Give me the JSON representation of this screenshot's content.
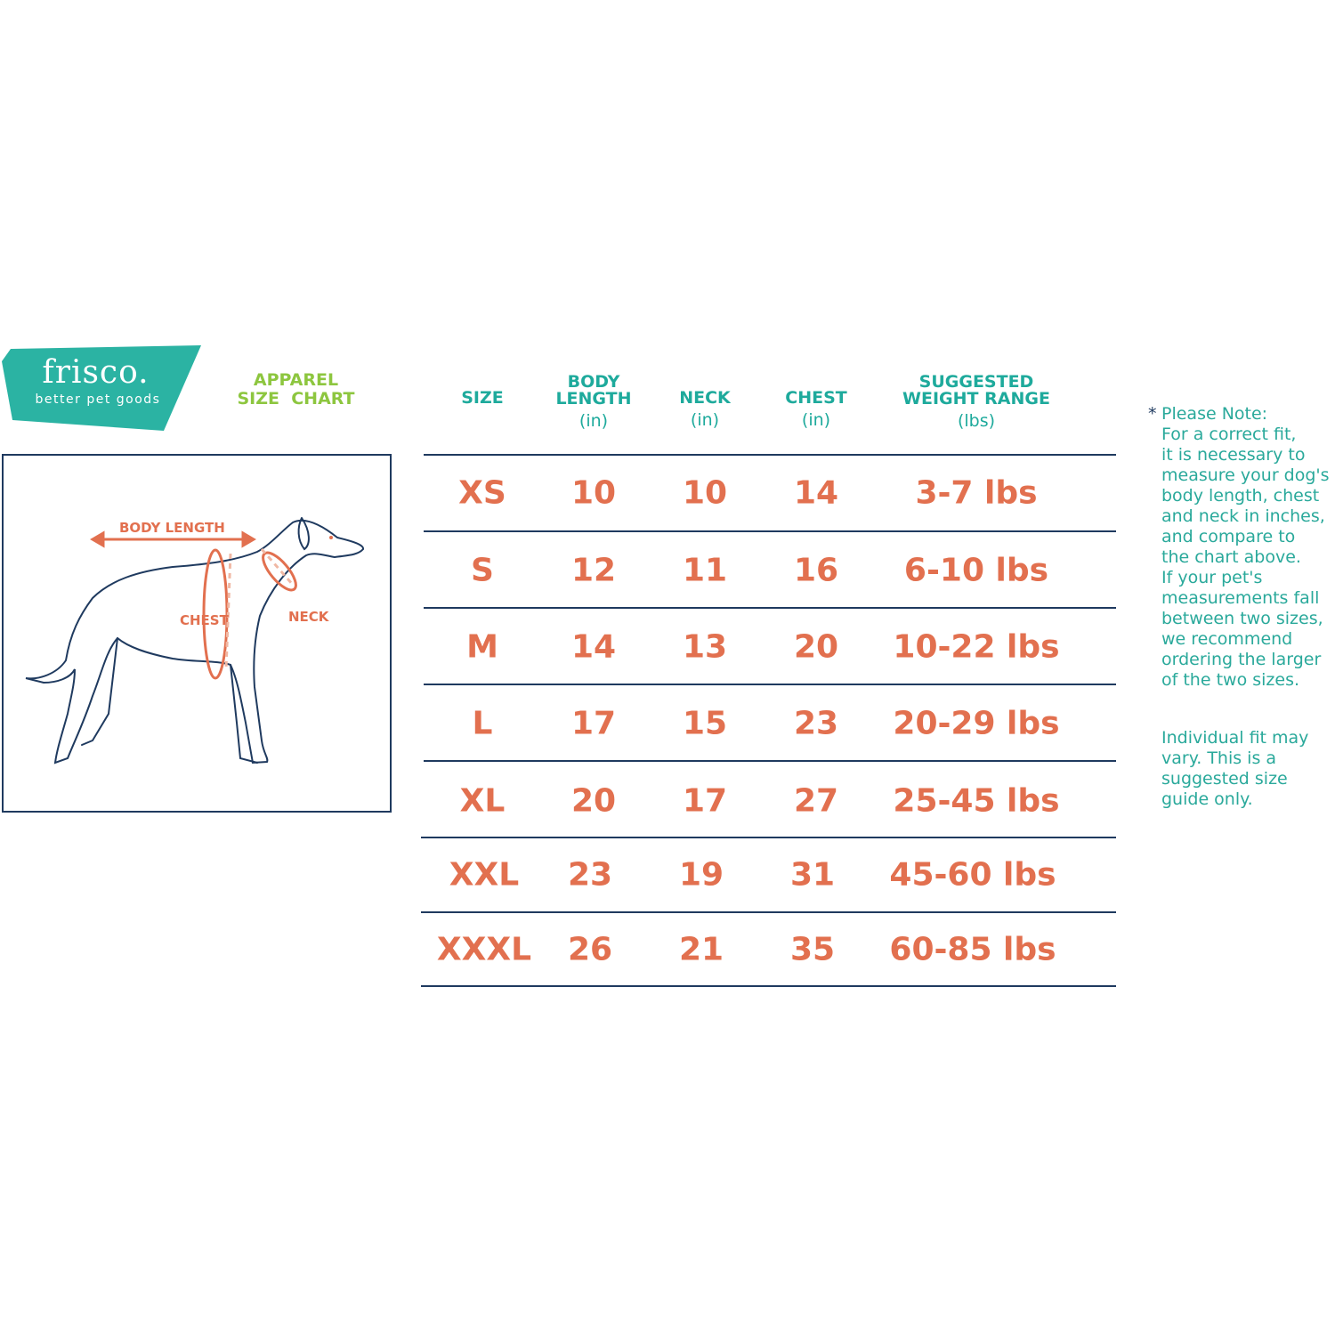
{
  "brand": {
    "name": "frisco.",
    "tagline": "better pet goods",
    "color": "#2bb3a3"
  },
  "title": {
    "line1": "APPAREL",
    "line2": "SIZE  CHART",
    "color": "#8dc63f"
  },
  "diagram": {
    "labels": {
      "body_length": "BODY LENGTH",
      "chest": "CHEST",
      "neck": "NECK"
    },
    "accent_color": "#e2704f",
    "outline_color": "#1f3a5f"
  },
  "table": {
    "columns": [
      {
        "label": "SIZE",
        "unit": ""
      },
      {
        "label": "BODY\nLENGTH",
        "unit": "(in)"
      },
      {
        "label": "NECK",
        "unit": "(in)"
      },
      {
        "label": "CHEST",
        "unit": "(in)"
      },
      {
        "label": "SUGGESTED\nWEIGHT RANGE",
        "unit": "(lbs)"
      }
    ],
    "rows": [
      [
        "XS",
        "10",
        "10",
        "14",
        "3-7 lbs"
      ],
      [
        "S",
        "12",
        "11",
        "16",
        "6-10 lbs"
      ],
      [
        "M",
        "14",
        "13",
        "20",
        "10-22 lbs"
      ],
      [
        "L",
        "17",
        "15",
        "23",
        "20-29 lbs"
      ],
      [
        "XL",
        "20",
        "17",
        "27",
        "25-45 lbs"
      ],
      [
        "XXL",
        "23",
        "19",
        "31",
        "45-60 lbs"
      ],
      [
        "XXXL",
        "26",
        "21",
        "35",
        "60-85 lbs"
      ]
    ],
    "header_color": "#1eaa9c",
    "value_color": "#e2704f"
  },
  "note": {
    "asterisk": "*",
    "text": "Please Note:\nFor a correct fit,\nit is necessary to\nmeasure your dog's\nbody length, chest\nand neck in inches,\nand compare to\nthe chart above.\nIf your pet's\nmeasurements fall\nbetween two sizes,\nwe recommend\nordering the larger\nof the two sizes.",
    "fit": "Individual fit may\nvary. This is a\nsuggested size\nguide only."
  }
}
